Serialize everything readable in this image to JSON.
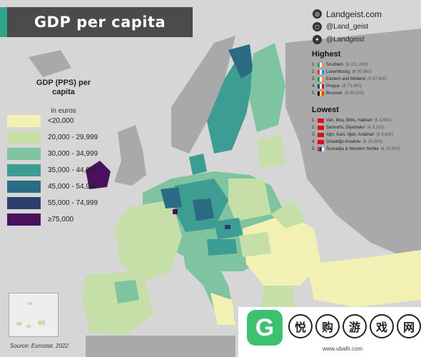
{
  "title": "GDP per capita",
  "social": [
    {
      "icon": "globe-icon",
      "text": "Landgeist.com",
      "big": true
    },
    {
      "icon": "instagram-icon",
      "text": "@Land_geist",
      "big": false
    },
    {
      "icon": "twitter-icon",
      "text": "@Landgeist",
      "big": false
    }
  ],
  "legend": {
    "title": "GDP (PPS) per capita",
    "subtitle": "in euros",
    "items": [
      {
        "label": "<20,000",
        "color": "#f3f0b4"
      },
      {
        "label": "20,000 - 29,999",
        "color": "#c6dfa8"
      },
      {
        "label": "30,000 - 34,999",
        "color": "#7fc4a0"
      },
      {
        "label": "35,000 - 44,999",
        "color": "#3e9d92"
      },
      {
        "label": "45,000 - 54,999",
        "color": "#2b6b84"
      },
      {
        "label": "55,000 - 74,999",
        "color": "#2e3e6c"
      },
      {
        "label": "≥75,000",
        "color": "#4a1060"
      }
    ]
  },
  "highest": {
    "heading": "Highest",
    "items": [
      {
        "num": "1.",
        "name": "Southern",
        "value": "(€ 101,200)",
        "flag": [
          "#169b62",
          "#ffffff",
          "#ff883e"
        ]
      },
      {
        "num": "2.",
        "name": "Luxembourg",
        "value": "(€ 90,900)",
        "flag": [
          "#ed2939",
          "#ffffff",
          "#00a1de"
        ]
      },
      {
        "num": "3.",
        "name": "Eastern and Midland",
        "value": "(€ 87,600)",
        "flag": [
          "#169b62",
          "#ffffff",
          "#ff883e"
        ]
      },
      {
        "num": "4.",
        "name": "Prague",
        "value": "(€ 73,400)",
        "flag": [
          "#11457e",
          "#ffffff",
          "#d7141a"
        ]
      },
      {
        "num": "5.",
        "name": "Brussels",
        "value": "(€ 69,500)",
        "flag": [
          "#000000",
          "#fdda24",
          "#ef3340"
        ]
      }
    ]
  },
  "lowest": {
    "heading": "Lowest",
    "items": [
      {
        "num": "1.",
        "name": "Van, Muş, Bitlis, Hakkari",
        "value": "(€ 8,600)",
        "flag": [
          "#e30a17",
          "#e30a17",
          "#e30a17"
        ]
      },
      {
        "num": "2.",
        "name": "Şanlıurfa, Diyarbakır",
        "value": "(€ 9,100)",
        "flag": [
          "#e30a17",
          "#e30a17",
          "#e30a17"
        ]
      },
      {
        "num": "3.",
        "name": "Ağrı, Kars, Iğdır, Ardahan",
        "value": "(€ 9,600)",
        "flag": [
          "#e30a17",
          "#e30a17",
          "#e30a17"
        ]
      },
      {
        "num": "4.",
        "name": "Ortadoğu Anadolu",
        "value": "(€ 10,500)",
        "flag": [
          "#e30a17",
          "#e30a17",
          "#e30a17"
        ]
      },
      {
        "num": "5.",
        "name": "Šumadija & Western Serbia",
        "value": "(€ 10,500)",
        "flag": [
          "#c6363c",
          "#0c4076",
          "#ffffff"
        ]
      }
    ]
  },
  "source": "Source: Eurostat, 2022",
  "watermark": {
    "chars": [
      "悦",
      "购",
      "游",
      "戏",
      "网"
    ],
    "url": "www.ubalh.com"
  }
}
